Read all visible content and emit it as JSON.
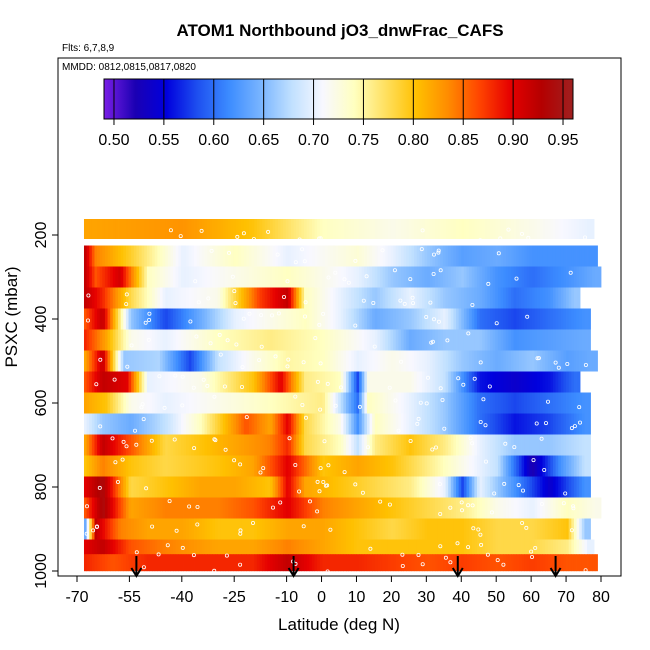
{
  "chart_data": {
    "type": "heatmap",
    "title": "ATOM1 Northbound jO3_dnwFrac_CAFS",
    "flights_label": "Flts: 6,7,8,9",
    "dates_label": "MMDD: 0812,0815,0817,0820",
    "xlabel": "Latitude (deg N)",
    "ylabel": "PSXC (mbar)",
    "xlim": [
      -70,
      80
    ],
    "ylim": [
      1000,
      100
    ],
    "x_ticks": [
      -70,
      -55,
      -40,
      -25,
      -10,
      0,
      10,
      20,
      30,
      40,
      50,
      60,
      70,
      80
    ],
    "x_tick_labels": [
      "-70",
      "-55",
      "-40",
      "-25",
      "-10",
      "0",
      "10",
      "20",
      "30",
      "40",
      "50",
      "60",
      "70",
      "80"
    ],
    "y_ticks": [
      200,
      400,
      600,
      800,
      1000
    ],
    "y_tick_labels": [
      "200",
      "400",
      "600",
      "800",
      "1000"
    ],
    "colorbar": {
      "min": 0.49,
      "max": 0.96,
      "ticks": [
        0.5,
        0.55,
        0.6,
        0.65,
        0.7,
        0.75,
        0.8,
        0.85,
        0.9,
        0.95
      ],
      "tick_labels": [
        "0.50",
        "0.55",
        "0.60",
        "0.65",
        "0.70",
        "0.75",
        "0.80",
        "0.85",
        "0.90",
        "0.95"
      ],
      "colors": [
        "#7a1fe6",
        "#1b00b3",
        "#0000dd",
        "#1e50f0",
        "#3c8cff",
        "#78b4ff",
        "#c0e0ff",
        "#f8f8ff",
        "#ffffc0",
        "#ffe060",
        "#ffc000",
        "#ff8c00",
        "#ff4500",
        "#e60000",
        "#b40000",
        "#a02020"
      ]
    },
    "latitude_markers": [
      -53,
      -8,
      39,
      67
    ],
    "pressure_bins": [
      {
        "pressure": 200,
        "segments": [
          [
            -68,
            0.82
          ],
          [
            -40,
            0.83
          ],
          [
            -20,
            0.8
          ],
          [
            0,
            0.74
          ],
          [
            20,
            0.72
          ],
          [
            40,
            0.74
          ],
          [
            60,
            0.72
          ],
          [
            76,
            0.7
          ]
        ]
      },
      {
        "pressure": 250,
        "segments": [
          [
            -68,
            0.92
          ],
          [
            -65,
            0.84
          ],
          [
            -55,
            0.79
          ],
          [
            -40,
            0.7
          ],
          [
            -25,
            0.74
          ],
          [
            -10,
            0.7
          ],
          [
            10,
            0.73
          ],
          [
            20,
            0.7
          ],
          [
            30,
            0.66
          ],
          [
            40,
            0.63
          ],
          [
            50,
            0.64
          ],
          [
            60,
            0.62
          ],
          [
            70,
            0.62
          ],
          [
            77,
            0.62
          ]
        ]
      },
      {
        "pressure": 300,
        "segments": [
          [
            -68,
            0.92
          ],
          [
            -65,
            0.86
          ],
          [
            -58,
            0.91
          ],
          [
            -50,
            0.74
          ],
          [
            -40,
            0.7
          ],
          [
            -25,
            0.72
          ],
          [
            -10,
            0.74
          ],
          [
            0,
            0.72
          ],
          [
            10,
            0.7
          ],
          [
            20,
            0.66
          ],
          [
            30,
            0.64
          ],
          [
            40,
            0.66
          ],
          [
            50,
            0.62
          ],
          [
            60,
            0.6
          ],
          [
            70,
            0.62
          ],
          [
            78,
            0.64
          ]
        ]
      },
      {
        "pressure": 350,
        "segments": [
          [
            -68,
            0.92
          ],
          [
            -63,
            0.88
          ],
          [
            -55,
            0.78
          ],
          [
            -45,
            0.7
          ],
          [
            -30,
            0.72
          ],
          [
            -18,
            0.87
          ],
          [
            -10,
            0.92
          ],
          [
            -5,
            0.74
          ],
          [
            5,
            0.7
          ],
          [
            15,
            0.66
          ],
          [
            25,
            0.7
          ],
          [
            35,
            0.66
          ],
          [
            45,
            0.64
          ],
          [
            55,
            0.6
          ],
          [
            65,
            0.62
          ],
          [
            72,
            0.66
          ]
        ]
      },
      {
        "pressure": 400,
        "segments": [
          [
            -68,
            0.86
          ],
          [
            -63,
            0.92
          ],
          [
            -55,
            0.66
          ],
          [
            -45,
            0.58
          ],
          [
            -35,
            0.64
          ],
          [
            -25,
            0.7
          ],
          [
            -15,
            0.72
          ],
          [
            -5,
            0.74
          ],
          [
            5,
            0.7
          ],
          [
            15,
            0.64
          ],
          [
            25,
            0.66
          ],
          [
            35,
            0.7
          ],
          [
            45,
            0.6
          ],
          [
            55,
            0.58
          ],
          [
            65,
            0.6
          ],
          [
            75,
            0.62
          ]
        ]
      },
      {
        "pressure": 450,
        "segments": [
          [
            -68,
            0.88
          ],
          [
            -62,
            0.82
          ],
          [
            -55,
            0.72
          ],
          [
            -45,
            0.7
          ],
          [
            -30,
            0.74
          ],
          [
            -15,
            0.76
          ],
          [
            0,
            0.74
          ],
          [
            15,
            0.7
          ],
          [
            25,
            0.64
          ],
          [
            35,
            0.66
          ],
          [
            45,
            0.66
          ],
          [
            55,
            0.62
          ],
          [
            65,
            0.63
          ],
          [
            75,
            0.64
          ]
        ]
      },
      {
        "pressure": 500,
        "segments": [
          [
            -68,
            0.82
          ],
          [
            -63,
            0.92
          ],
          [
            -57,
            0.66
          ],
          [
            -47,
            0.67
          ],
          [
            -38,
            0.58
          ],
          [
            -30,
            0.68
          ],
          [
            -20,
            0.72
          ],
          [
            -10,
            0.75
          ],
          [
            0,
            0.74
          ],
          [
            10,
            0.7
          ],
          [
            20,
            0.72
          ],
          [
            30,
            0.7
          ],
          [
            40,
            0.66
          ],
          [
            50,
            0.64
          ],
          [
            60,
            0.66
          ],
          [
            70,
            0.63
          ],
          [
            77,
            0.64
          ]
        ]
      },
      {
        "pressure": 550,
        "segments": [
          [
            -68,
            0.86
          ],
          [
            -63,
            0.92
          ],
          [
            -56,
            0.9
          ],
          [
            -50,
            0.7
          ],
          [
            -35,
            0.72
          ],
          [
            -20,
            0.8
          ],
          [
            -12,
            0.9
          ],
          [
            -5,
            0.76
          ],
          [
            5,
            0.74
          ],
          [
            10,
            0.58
          ],
          [
            13,
            0.72
          ],
          [
            25,
            0.72
          ],
          [
            35,
            0.68
          ],
          [
            45,
            0.56
          ],
          [
            55,
            0.54
          ],
          [
            65,
            0.56
          ],
          [
            72,
            0.6
          ]
        ]
      },
      {
        "pressure": 600,
        "segments": [
          [
            -68,
            0.82
          ],
          [
            -62,
            0.8
          ],
          [
            -55,
            0.72
          ],
          [
            -45,
            0.7
          ],
          [
            -30,
            0.72
          ],
          [
            -15,
            0.74
          ],
          [
            0,
            0.76
          ],
          [
            10,
            0.6
          ],
          [
            13,
            0.74
          ],
          [
            25,
            0.7
          ],
          [
            35,
            0.66
          ],
          [
            45,
            0.6
          ],
          [
            55,
            0.58
          ],
          [
            65,
            0.6
          ],
          [
            75,
            0.62
          ]
        ]
      },
      {
        "pressure": 650,
        "segments": [
          [
            -68,
            0.7
          ],
          [
            -63,
            0.66
          ],
          [
            -55,
            0.64
          ],
          [
            -45,
            0.68
          ],
          [
            -35,
            0.74
          ],
          [
            -22,
            0.86
          ],
          [
            -15,
            0.82
          ],
          [
            -10,
            0.9
          ],
          [
            -5,
            0.78
          ],
          [
            5,
            0.72
          ],
          [
            10,
            0.62
          ],
          [
            15,
            0.74
          ],
          [
            25,
            0.7
          ],
          [
            35,
            0.66
          ],
          [
            45,
            0.6
          ],
          [
            55,
            0.56
          ],
          [
            65,
            0.58
          ],
          [
            75,
            0.62
          ]
        ]
      },
      {
        "pressure": 700,
        "segments": [
          [
            -68,
            0.82
          ],
          [
            -63,
            0.92
          ],
          [
            -55,
            0.86
          ],
          [
            -45,
            0.78
          ],
          [
            -35,
            0.8
          ],
          [
            -25,
            0.82
          ],
          [
            -15,
            0.84
          ],
          [
            -10,
            0.88
          ],
          [
            -5,
            0.78
          ],
          [
            5,
            0.74
          ],
          [
            10,
            0.68
          ],
          [
            15,
            0.76
          ],
          [
            25,
            0.8
          ],
          [
            35,
            0.76
          ],
          [
            45,
            0.7
          ],
          [
            55,
            0.66
          ],
          [
            65,
            0.66
          ],
          [
            75,
            0.68
          ]
        ]
      },
      {
        "pressure": 750,
        "segments": [
          [
            -68,
            0.8
          ],
          [
            -63,
            0.84
          ],
          [
            -55,
            0.8
          ],
          [
            -45,
            0.78
          ],
          [
            -30,
            0.8
          ],
          [
            -20,
            0.82
          ],
          [
            -10,
            0.9
          ],
          [
            0,
            0.8
          ],
          [
            10,
            0.82
          ],
          [
            20,
            0.8
          ],
          [
            30,
            0.76
          ],
          [
            40,
            0.72
          ],
          [
            50,
            0.68
          ],
          [
            60,
            0.52
          ],
          [
            68,
            0.62
          ],
          [
            75,
            0.68
          ]
        ]
      },
      {
        "pressure": 800,
        "segments": [
          [
            -68,
            0.9
          ],
          [
            -63,
            0.94
          ],
          [
            -55,
            0.78
          ],
          [
            -45,
            0.8
          ],
          [
            -35,
            0.82
          ],
          [
            -25,
            0.82
          ],
          [
            -15,
            0.8
          ],
          [
            -10,
            0.9
          ],
          [
            -5,
            0.82
          ],
          [
            5,
            0.8
          ],
          [
            15,
            0.78
          ],
          [
            25,
            0.76
          ],
          [
            35,
            0.7
          ],
          [
            40,
            0.58
          ],
          [
            45,
            0.7
          ],
          [
            55,
            0.62
          ],
          [
            65,
            0.54
          ],
          [
            75,
            0.62
          ]
        ]
      },
      {
        "pressure": 850,
        "segments": [
          [
            -68,
            0.86
          ],
          [
            -63,
            0.94
          ],
          [
            -55,
            0.82
          ],
          [
            -45,
            0.84
          ],
          [
            -30,
            0.84
          ],
          [
            -20,
            0.86
          ],
          [
            -10,
            0.9
          ],
          [
            0,
            0.84
          ],
          [
            10,
            0.82
          ],
          [
            20,
            0.8
          ],
          [
            30,
            0.78
          ],
          [
            40,
            0.76
          ],
          [
            50,
            0.72
          ],
          [
            60,
            0.7
          ],
          [
            70,
            0.74
          ],
          [
            78,
            0.72
          ]
        ]
      },
      {
        "pressure": 900,
        "segments": [
          [
            -68,
            0.64
          ],
          [
            -65,
            0.92
          ],
          [
            -58,
            0.84
          ],
          [
            -50,
            0.82
          ],
          [
            -40,
            0.82
          ],
          [
            -30,
            0.8
          ],
          [
            -20,
            0.8
          ],
          [
            -10,
            0.82
          ],
          [
            0,
            0.82
          ],
          [
            10,
            0.8
          ],
          [
            20,
            0.78
          ],
          [
            30,
            0.8
          ],
          [
            40,
            0.8
          ],
          [
            50,
            0.78
          ],
          [
            60,
            0.78
          ],
          [
            70,
            0.8
          ],
          [
            75,
            0.66
          ]
        ]
      },
      {
        "pressure": 950,
        "segments": [
          [
            -68,
            0.9
          ],
          [
            -63,
            0.92
          ],
          [
            -55,
            0.86
          ],
          [
            -45,
            0.84
          ],
          [
            -30,
            0.82
          ],
          [
            -20,
            0.82
          ],
          [
            -10,
            0.84
          ],
          [
            0,
            0.82
          ],
          [
            10,
            0.8
          ],
          [
            20,
            0.8
          ],
          [
            30,
            0.8
          ],
          [
            40,
            0.8
          ],
          [
            50,
            0.78
          ],
          [
            60,
            0.78
          ],
          [
            70,
            0.76
          ],
          [
            76,
            0.7
          ]
        ]
      },
      {
        "pressure": 985,
        "segments": [
          [
            -68,
            0.88
          ],
          [
            -60,
            0.86
          ],
          [
            -50,
            0.88
          ],
          [
            -35,
            0.88
          ],
          [
            -20,
            0.88
          ],
          [
            -10,
            0.92
          ],
          [
            0,
            0.88
          ],
          [
            10,
            0.88
          ],
          [
            20,
            0.87
          ],
          [
            30,
            0.86
          ],
          [
            40,
            0.87
          ],
          [
            50,
            0.86
          ],
          [
            60,
            0.87
          ],
          [
            70,
            0.86
          ],
          [
            77,
            0.86
          ]
        ]
      }
    ]
  }
}
